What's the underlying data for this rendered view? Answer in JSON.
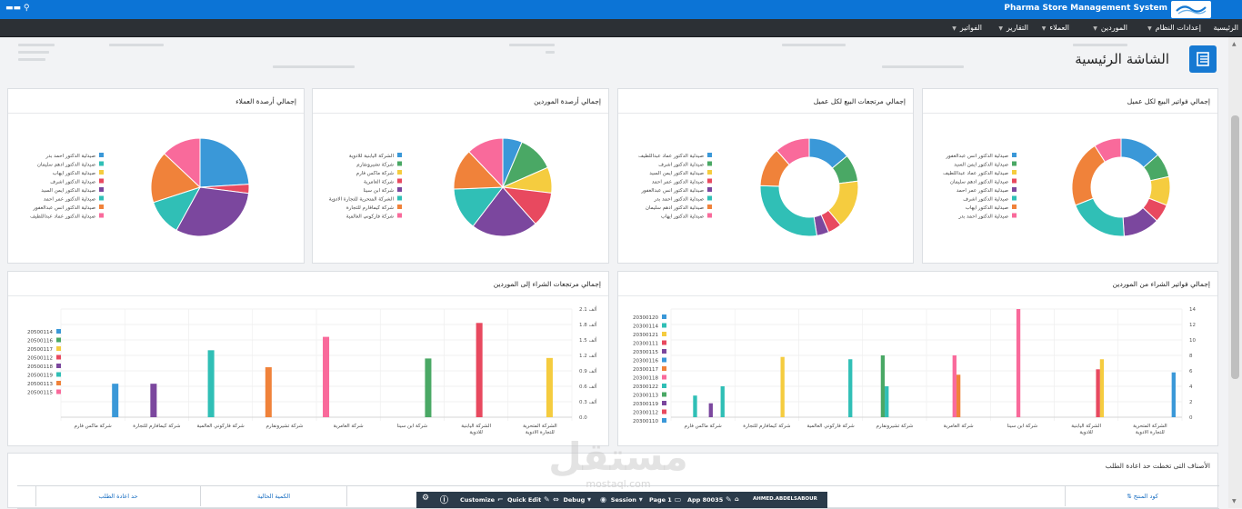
{
  "app": {
    "title": "Pharma Store Management System",
    "user": "▬▬ ⚲"
  },
  "menu": [
    {
      "label": "الرئيسية",
      "has_dropdown": false
    },
    {
      "label": "إعدادات النظام",
      "has_dropdown": true
    },
    {
      "label": "الموردين",
      "has_dropdown": true
    },
    {
      "label": "العملاء",
      "has_dropdown": true
    },
    {
      "label": "التقارير",
      "has_dropdown": true
    },
    {
      "label": "الفواتير",
      "has_dropdown": true
    }
  ],
  "page": {
    "title": "الشاشة الرئيسية"
  },
  "colors": {
    "palette": [
      "#3a98d8",
      "#30bfb6",
      "#f5cc3f",
      "#f0823a",
      "#e8495f",
      "#7b479e",
      "#f96a9b",
      "#4aa865",
      "#60a0d2"
    ],
    "topbar": "#0c74d6",
    "menubar": "#2c3035"
  },
  "charts": {
    "sales_per_customer": {
      "title": "إجمالي فواتير البيع لكل عميل",
      "chart_data": {
        "type": "pie",
        "donut": true,
        "legend_position": "left",
        "labels": [
          "صيدلية الدكتور انس عبدالغفور",
          "صيدلية الدكتور ايمن السيد",
          "صيدلية الدكتور عماد عبداللطيف",
          "صيدلية الدكتور ادهم سليمان",
          "صيدلية الدكتور عمر احمد",
          "صيدلية الدكتور اشرف",
          "صيدلية الدكتور ايهاب",
          "صيدلية الدكتور احمد بدر"
        ],
        "values": [
          13.5,
          8,
          9.5,
          6,
          12,
          20,
          22,
          9
        ],
        "colors": [
          "#3a98d8",
          "#4aa865",
          "#f5cc3f",
          "#e8495f",
          "#7b479e",
          "#30bfb6",
          "#f0823a",
          "#f96a9b"
        ]
      }
    },
    "sales_returns_per_customer": {
      "title": "إجمالي مرتجعات البيع لكل عميل",
      "chart_data": {
        "type": "pie",
        "donut": true,
        "legend_position": "left",
        "labels": [
          "صيدلية الدكتور عماد عبداللطيف",
          "صيدلية الدكتور اشرف",
          "صيدلية الدكتور ايمن السيد",
          "صيدلية الدكتور عمر احمد",
          "صيدلية الدكتور انس عبدالغفور",
          "صيدلية الدكتور احمد بدر",
          "صيدلية الدكتور ادهم سليمان",
          "صيدلية الدكتور ايهاب"
        ],
        "values": [
          14,
          9,
          16,
          4.5,
          4,
          28,
          13,
          11.5
        ],
        "colors": [
          "#3a98d8",
          "#4aa865",
          "#f5cc3f",
          "#e8495f",
          "#7b479e",
          "#30bfb6",
          "#f0823a",
          "#f96a9b"
        ]
      }
    },
    "supplier_balances": {
      "title": "إجمالي أرصدة الموردين",
      "chart_data": {
        "type": "pie",
        "donut": false,
        "legend_position": "left",
        "labels": [
          "الشركة اليابنية للادوية",
          "شركة تشيرونفارم",
          "شركة ماكس فارم",
          "شركة العامرية",
          "شركة ابن سينا",
          "الشركة المتحرية للتجارة الادوية",
          "شركة كيمافارم للتجارة",
          "شركة فاركوني العالمية"
        ],
        "values": [
          6.4,
          12,
          8.5,
          11.5,
          22,
          14,
          13.5,
          12.1
        ],
        "colors": [
          "#3a98d8",
          "#4aa865",
          "#f5cc3f",
          "#e8495f",
          "#7b479e",
          "#30bfb6",
          "#f0823a",
          "#f96a9b"
        ]
      }
    },
    "customer_balances": {
      "title": "إجمالي أرصدة العملاء",
      "chart_data": {
        "type": "pie",
        "donut": false,
        "legend_position": "left",
        "labels": [
          "صيدلية الدكتور احمد بدر",
          "صيدلية الدكتور ادهم سليمان",
          "صيدلية الدكتور ايهاب",
          "صيدلية الدكتور اشرف",
          "صيدلية الدكتور ايمن السيد",
          "صيدلية الدكتور عمر احمد",
          "صيدلية الدكتور انس عبدالغفور",
          "صيدلية الدكتور عماد عبداللطيف"
        ],
        "values": [
          24,
          0,
          0,
          3,
          31,
          12,
          17,
          13
        ],
        "colors": [
          "#3a98d8",
          "#30bfb6",
          "#f5cc3f",
          "#e8495f",
          "#7b479e",
          "#30bfb6",
          "#f0823a",
          "#f96a9b"
        ]
      }
    },
    "purchase_invoices": {
      "title": "إجمالي فواتير الشراء من الموردين",
      "chart_data": {
        "type": "bar",
        "legend_position": "left",
        "ylim": [
          0,
          14
        ],
        "ytick_labels": [
          "0",
          "2",
          "4",
          "6",
          "8",
          "10",
          "12",
          "14"
        ],
        "categories": [
          "الشركة المتحرية للتجارة الادوية",
          "الشركة اليابنية للادوية",
          "شركة ابن سينا",
          "شركة العامرية",
          "شركة تشيرونفارم",
          "شركة فاركوني العالمية",
          "شركة كيمافارم للتجارة",
          "شركة ماكس فارم"
        ],
        "series": [
          {
            "name": "20300120",
            "color": "#3a98d8",
            "values": [
              5.8,
              0,
              0,
              0,
              0,
              0,
              0,
              0
            ]
          },
          {
            "name": "20300114",
            "color": "#30bfb6",
            "values": [
              0,
              0,
              0,
              0,
              0,
              7.5,
              0,
              4
            ]
          },
          {
            "name": "20300121",
            "color": "#f5cc3f",
            "values": [
              0,
              7.5,
              0,
              0,
              0,
              0,
              7.8,
              0
            ]
          },
          {
            "name": "20300111",
            "color": "#e8495f",
            "values": [
              0,
              6.2,
              0,
              0,
              0,
              0,
              0,
              0
            ]
          },
          {
            "name": "20300115",
            "color": "#7b479e",
            "values": [
              0,
              0,
              0,
              0,
              0,
              0,
              0,
              1.8
            ]
          },
          {
            "name": "20300116",
            "color": "#3a98d8",
            "values": [
              0,
              0,
              0,
              0,
              0,
              0,
              0,
              0
            ]
          },
          {
            "name": "20300117",
            "color": "#f0823a",
            "values": [
              0,
              0,
              0,
              5.5,
              0,
              0,
              0,
              0
            ]
          },
          {
            "name": "20300118",
            "color": "#f96a9b",
            "values": [
              0,
              0,
              14,
              8,
              0,
              0,
              0,
              0
            ]
          },
          {
            "name": "20300122",
            "color": "#30bfb6",
            "values": [
              0,
              0,
              0,
              0,
              4,
              0,
              0,
              2.8
            ]
          },
          {
            "name": "20300113",
            "color": "#4aa865",
            "values": [
              0,
              0,
              0,
              0,
              8,
              0,
              0,
              0
            ]
          },
          {
            "name": "20300119",
            "color": "#7b479e",
            "values": [
              0,
              0,
              0,
              0,
              0,
              0,
              0,
              0
            ]
          },
          {
            "name": "20300112",
            "color": "#e8495f",
            "values": [
              0,
              0,
              0,
              0,
              0,
              0,
              0,
              0
            ]
          },
          {
            "name": "20300110",
            "color": "#3a98d8",
            "values": [
              0,
              0,
              0,
              0,
              0,
              0,
              0,
              0
            ]
          }
        ]
      }
    },
    "purchase_returns": {
      "title": "إجمالي مرتجعات الشراء إلى الموردين",
      "chart_data": {
        "type": "bar",
        "legend_position": "left",
        "ylim": [
          0,
          2.1
        ],
        "ytick_labels": [
          "0.0",
          "0.3 ألف",
          "0.6 ألف",
          "0.9 ألف",
          "1.2 ألف",
          "1.5 ألف",
          "1.8 ألف",
          "2.1 ألف"
        ],
        "categories": [
          "الشركة المتحرية للتجارة الادوية",
          "الشركة اليابنية للادوية",
          "شركة ابن سينا",
          "شركة العامرية",
          "شركة تشيرونفارم",
          "شركة فاركوني العالمية",
          "شركة كيمافارم للتجارة",
          "شركة ماكس فارم"
        ],
        "series": [
          {
            "name": "20500114",
            "color": "#3a98d8",
            "values": [
              0,
              0,
              0,
              0,
              0,
              0,
              0,
              0.65
            ]
          },
          {
            "name": "20500116",
            "color": "#4aa865",
            "values": [
              0,
              0,
              1.14,
              0,
              0,
              0,
              0,
              0
            ]
          },
          {
            "name": "20500117",
            "color": "#f5cc3f",
            "values": [
              1.15,
              0,
              0,
              0,
              0,
              0,
              0,
              0
            ]
          },
          {
            "name": "20500112",
            "color": "#e8495f",
            "values": [
              0,
              1.83,
              0,
              0,
              0,
              0,
              0,
              0
            ]
          },
          {
            "name": "20500118",
            "color": "#7b479e",
            "values": [
              0,
              0,
              0,
              0,
              0,
              0,
              0.65,
              0
            ]
          },
          {
            "name": "20500119",
            "color": "#30bfb6",
            "values": [
              0,
              0,
              0,
              0,
              0,
              1.3,
              0,
              0
            ]
          },
          {
            "name": "20500113",
            "color": "#f0823a",
            "values": [
              0,
              0,
              0,
              0,
              0.97,
              0,
              0,
              0
            ]
          },
          {
            "name": "20500115",
            "color": "#f96a9b",
            "values": [
              0,
              0,
              0,
              1.56,
              0,
              0,
              0,
              0
            ]
          }
        ]
      }
    }
  },
  "reorder": {
    "title": "الأصناف التى تخطت حد اعادة الطلب",
    "columns": [
      "كود المنتج ⇅",
      "",
      "الكمية الحالية",
      "حد اعادة الطلب"
    ]
  },
  "devbar": {
    "items": [
      "Customize",
      "Quick Edit",
      "Debug",
      "Session",
      "Page 1",
      "App 80035",
      "AHMED.ABDELSABOUR"
    ]
  },
  "watermark": {
    "text": "مستقل",
    "sub": "mostaql.com"
  }
}
